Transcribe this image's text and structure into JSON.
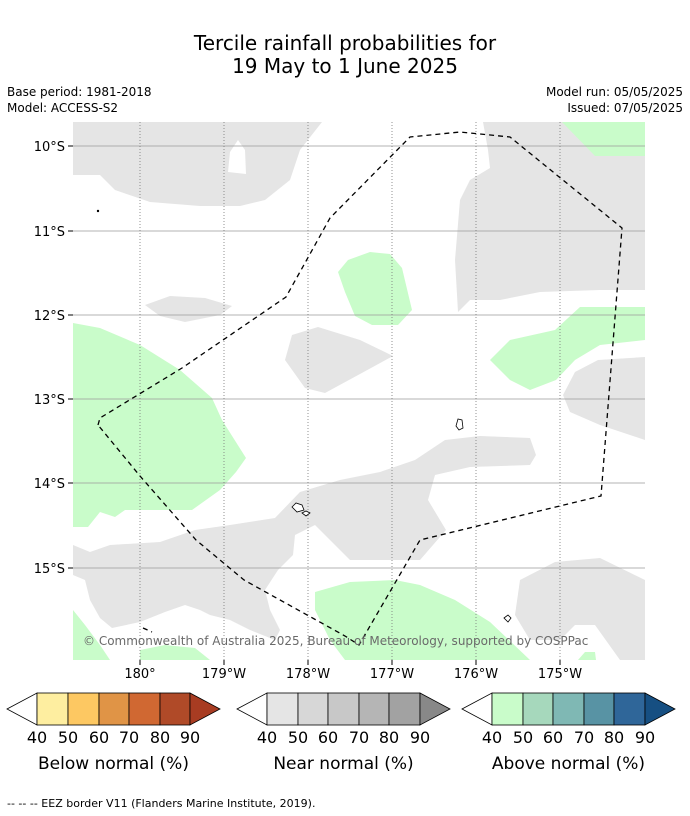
{
  "title": {
    "line1": "Tercile rainfall probabilities for",
    "line2": "19 May to 1 June 2025"
  },
  "meta": {
    "base_period": "Base period: 1981-2018",
    "model": "Model: ACCESS-S2",
    "model_run": "Model run: 05/05/2025",
    "issued": "Issued: 07/05/2025"
  },
  "map": {
    "lat_labels": [
      "10°S",
      "11°S",
      "12°S",
      "13°S",
      "14°S",
      "15°S"
    ],
    "lon_labels": [
      "180°",
      "179°W",
      "178°W",
      "177°W",
      "176°W",
      "175°W"
    ],
    "copyright": "© Commonwealth of Australia 2025, Bureau of Meteorology, supported by COSPPac",
    "colors": {
      "near_normal_fill": "#e5e5e5",
      "above_normal_fill": "#c9fcca",
      "grid": "#999999",
      "eez_border": "#000000"
    }
  },
  "legends": [
    {
      "title": "Below normal (%)",
      "ticks": [
        "40",
        "50",
        "60",
        "70",
        "80",
        "90"
      ],
      "colors": [
        "#ffffff",
        "#feeea0",
        "#fdc862",
        "#e09446",
        "#d06832",
        "#b04a28",
        "#a83c22"
      ]
    },
    {
      "title": "Near normal (%)",
      "ticks": [
        "40",
        "50",
        "60",
        "70",
        "80",
        "90"
      ],
      "colors": [
        "#ffffff",
        "#e5e5e5",
        "#d7d7d7",
        "#c8c8c8",
        "#b5b5b5",
        "#a2a2a2",
        "#888888"
      ]
    },
    {
      "title": "Above normal (%)",
      "ticks": [
        "40",
        "50",
        "60",
        "70",
        "80",
        "90"
      ],
      "colors": [
        "#ffffff",
        "#c9fcca",
        "#a6d8bc",
        "#7fb8b4",
        "#5893a4",
        "#2f6699",
        "#164f82"
      ]
    }
  ],
  "footnote": "--  --  -- EEZ border V11 (Flanders Marine Institute, 2019)."
}
